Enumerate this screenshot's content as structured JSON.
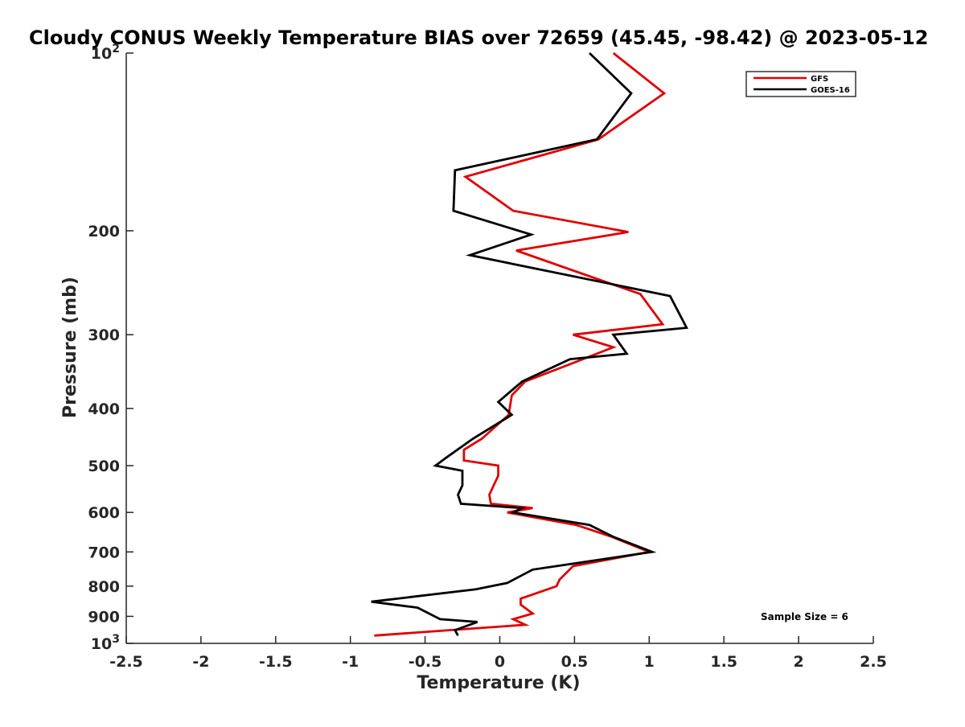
{
  "chart_data": {
    "type": "line",
    "title": "Cloudy CONUS Weekly Temperature BIAS over 72659 (45.45, -98.42) @ 2023-05-12",
    "xlabel": "Temperature (K)",
    "ylabel": "Pressure (mb)",
    "xlim": [
      -2.5,
      2.5
    ],
    "ylim": [
      100,
      1000
    ],
    "y_scale": "log",
    "y_reversed": true,
    "grid": false,
    "legend_position": "top-right",
    "x_ticks": [
      "-2.5",
      "-2",
      "-1.5",
      "-1",
      "-0.5",
      "0",
      "0.5",
      "1",
      "1.5",
      "2",
      "2.5"
    ],
    "x_tick_values": [
      -2.5,
      -2,
      -1.5,
      -1,
      -0.5,
      0,
      0.5,
      1,
      1.5,
      2,
      2.5
    ],
    "y_ticks": [
      {
        "value": 100,
        "label": "10",
        "sup": "2"
      },
      {
        "value": 200,
        "label": "200",
        "sup": ""
      },
      {
        "value": 300,
        "label": "300",
        "sup": ""
      },
      {
        "value": 400,
        "label": "400",
        "sup": ""
      },
      {
        "value": 500,
        "label": "500",
        "sup": ""
      },
      {
        "value": 600,
        "label": "600",
        "sup": ""
      },
      {
        "value": 700,
        "label": "700",
        "sup": ""
      },
      {
        "value": 800,
        "label": "800",
        "sup": ""
      },
      {
        "value": 900,
        "label": "900",
        "sup": ""
      },
      {
        "value": 1000,
        "label": "10",
        "sup": "3"
      }
    ],
    "annotation": "Sample Size = 6",
    "series": [
      {
        "name": "GFS",
        "color": "#e00000",
        "x": [
          0.76,
          1.1,
          0.66,
          -0.23,
          0.09,
          0.86,
          0.11,
          0.94,
          1.09,
          0.49,
          0.76,
          0.49,
          0.17,
          0.08,
          0.06,
          -0.12,
          -0.24,
          -0.24,
          -0.01,
          -0.01,
          -0.07,
          -0.06,
          0.22,
          0.05,
          0.51,
          0.75,
          1.0,
          0.49,
          0.4,
          0.38,
          0.14,
          0.14,
          0.22,
          0.09,
          0.17,
          -0.84
        ],
        "y": [
          100,
          117,
          140,
          162,
          185,
          201,
          216,
          256,
          288,
          300,
          315,
          335,
          360,
          380,
          410,
          450,
          470,
          490,
          500,
          520,
          560,
          580,
          590,
          600,
          630,
          660,
          700,
          740,
          780,
          800,
          840,
          860,
          890,
          910,
          930,
          970
        ]
      },
      {
        "name": "GOES-16",
        "color": "#000000",
        "x": [
          0.6,
          0.88,
          0.65,
          -0.3,
          -0.31,
          0.21,
          -0.2,
          1.14,
          1.25,
          0.76,
          0.85,
          0.47,
          0.15,
          -0.01,
          0.08,
          -0.18,
          -0.36,
          -0.43,
          -0.25,
          -0.25,
          -0.28,
          -0.26,
          0.15,
          0.09,
          0.6,
          0.76,
          1.02,
          0.22,
          0.05,
          -0.16,
          -0.86,
          -0.55,
          -0.4,
          -0.15,
          -0.3,
          -0.28
        ],
        "y": [
          100,
          117,
          140,
          158,
          185,
          203,
          220,
          258,
          292,
          300,
          323,
          330,
          360,
          390,
          410,
          450,
          485,
          500,
          510,
          540,
          560,
          580,
          590,
          600,
          630,
          660,
          700,
          750,
          790,
          810,
          850,
          870,
          910,
          920,
          950,
          970
        ]
      }
    ]
  }
}
